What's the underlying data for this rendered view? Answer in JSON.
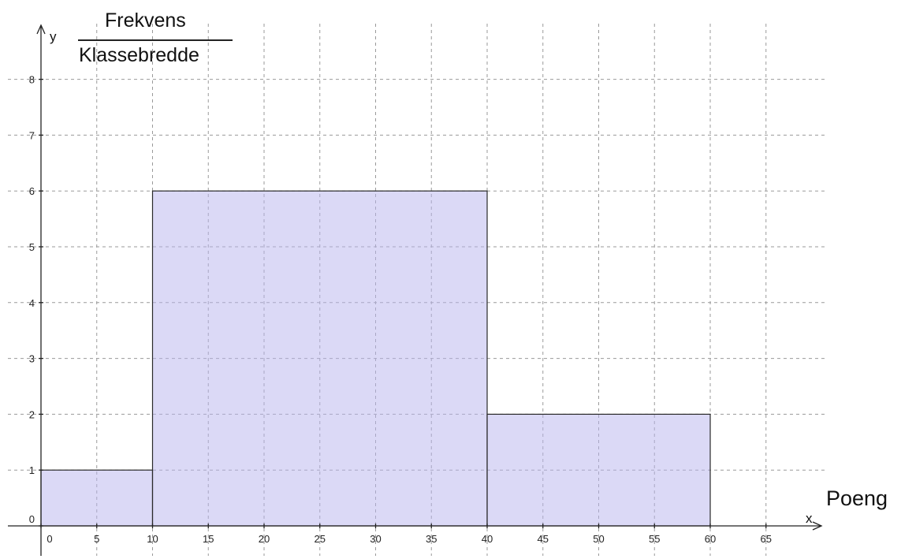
{
  "chart_data": {
    "type": "bar",
    "subtype": "histogram",
    "bins": [
      {
        "from": 0,
        "to": 10,
        "value": 1
      },
      {
        "from": 10,
        "to": 40,
        "value": 6
      },
      {
        "from": 40,
        "to": 60,
        "value": 2
      }
    ],
    "ylabel": {
      "numerator": "Frekvens",
      "denominator": "Klassebredde"
    },
    "xlabel": "Poeng",
    "x_axis_letter": "x",
    "y_axis_letter": "y",
    "xlim": [
      0,
      65
    ],
    "ylim": [
      0,
      8
    ],
    "xticks": [
      0,
      5,
      10,
      15,
      20,
      25,
      30,
      35,
      40,
      45,
      50,
      55,
      60,
      65
    ],
    "yticks": [
      0,
      1,
      2,
      3,
      4,
      5,
      6,
      7,
      8
    ],
    "grid": true,
    "colors": {
      "bar_fill": "#b7b3ee",
      "bar_stroke": "#2a2a2a",
      "grid": "#9a9a9a"
    }
  }
}
